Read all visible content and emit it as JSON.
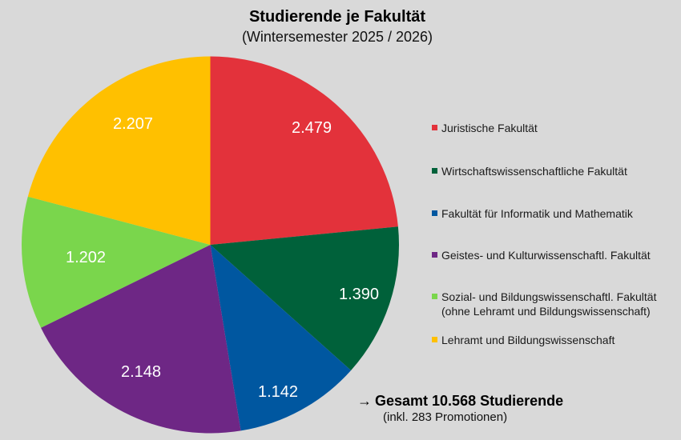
{
  "header": {
    "title": "Studierende je Fakultät",
    "subtitle": "(Wintersemester 2025 / 2026)"
  },
  "chart_data": {
    "type": "pie",
    "title": "Studierende je Fakultät",
    "subtitle": "(Wintersemester 2025 / 2026)",
    "start_angle_deg": 0,
    "direction": "clockwise",
    "categories": [
      "Juristische Fakultät",
      "Wirtschaftswissenschaftliche Fakultät",
      "Fakultät für Informatik und Mathematik",
      "Geistes- und Kulturwissenschaftl. Fakultät",
      "Sozial- und Bildungswissenschaftl. Fakultät (ohne Lehramt und Bildungswissenschaft)",
      "Lehramt und Bildungswissenschaft"
    ],
    "values": [
      2479,
      1390,
      1142,
      2148,
      1202,
      2207
    ],
    "value_labels": [
      "2.479",
      "1.390",
      "1.142",
      "2.148",
      "1.202",
      "2.207"
    ],
    "colors": [
      "#e3323b",
      "#00613a",
      "#0057a0",
      "#6e2785",
      "#7ad64c",
      "#ffc000"
    ],
    "total": 10568,
    "legend_position": "right",
    "annotation": "→ Gesamt 10.568 Studierende (inkl. 283 Promotionen)"
  },
  "legend": {
    "items": [
      {
        "label": "Juristische Fakultät",
        "color": "#e3323b"
      },
      {
        "label": "Wirtschaftswissenschaftliche Fakultät",
        "color": "#00613a"
      },
      {
        "label": "Fakultät für Informatik und Mathematik",
        "color": "#0057a0"
      },
      {
        "label": "Geistes- und Kulturwissenschaftl. Fakultät",
        "color": "#6e2785"
      },
      {
        "label": "Sozial- und Bildungswissenschaftl. Fakultät\n(ohne Lehramt und Bildungswissenschaft)",
        "color": "#7ad64c"
      },
      {
        "label": "Lehramt und Bildungswissenschaft",
        "color": "#ffc000"
      }
    ]
  },
  "total": {
    "arrow": "→",
    "main": "Gesamt 10.568 Studierende",
    "sub": "(inkl. 283 Promotionen)"
  }
}
